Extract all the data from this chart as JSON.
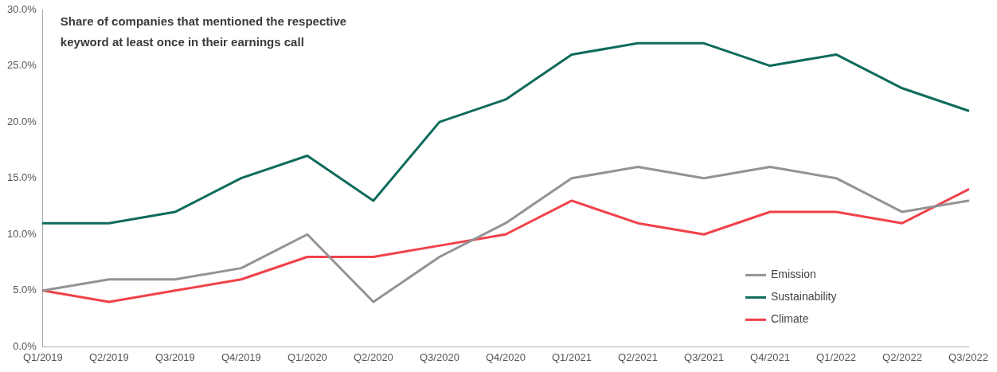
{
  "chart_data": {
    "type": "line",
    "title": "Share of companies that mentioned the respective\nkeyword at least once in their earnings call",
    "categories": [
      "Q1/2019",
      "Q2/2019",
      "Q3/2019",
      "Q4/2019",
      "Q1/2020",
      "Q2/2020",
      "Q3/2020",
      "Q4/2020",
      "Q1/2021",
      "Q2/2021",
      "Q3/2021",
      "Q4/2021",
      "Q1/2022",
      "Q2/2022",
      "Q3/2022"
    ],
    "series": [
      {
        "name": "Emission",
        "color": "#939393",
        "values": [
          5,
          6,
          6,
          7,
          10,
          4,
          8,
          11,
          15,
          16,
          15,
          16,
          15,
          12,
          13
        ]
      },
      {
        "name": "Sustainability",
        "color": "#0e6b5c",
        "values": [
          11,
          11,
          12,
          15,
          17,
          13,
          20,
          22,
          26,
          27,
          27,
          25,
          26,
          23,
          21
        ]
      },
      {
        "name": "Climate",
        "color": "#f0424a",
        "values": [
          5,
          4,
          5,
          6,
          8,
          8,
          9,
          10,
          13,
          11,
          10,
          12,
          12,
          11,
          14
        ]
      }
    ],
    "ylim": [
      0,
      30
    ],
    "yticks": [
      {
        "value": 0,
        "label": "0.0%"
      },
      {
        "value": 5,
        "label": "5.0%"
      },
      {
        "value": 10,
        "label": "10.0%"
      },
      {
        "value": 15,
        "label": "15.0%"
      },
      {
        "value": 20,
        "label": "20.0%"
      },
      {
        "value": 25,
        "label": "25.0%"
      },
      {
        "value": 30,
        "label": "30.0%"
      }
    ],
    "grid": false,
    "legend": "bottom right",
    "marker": "none",
    "line_style": "solid"
  }
}
